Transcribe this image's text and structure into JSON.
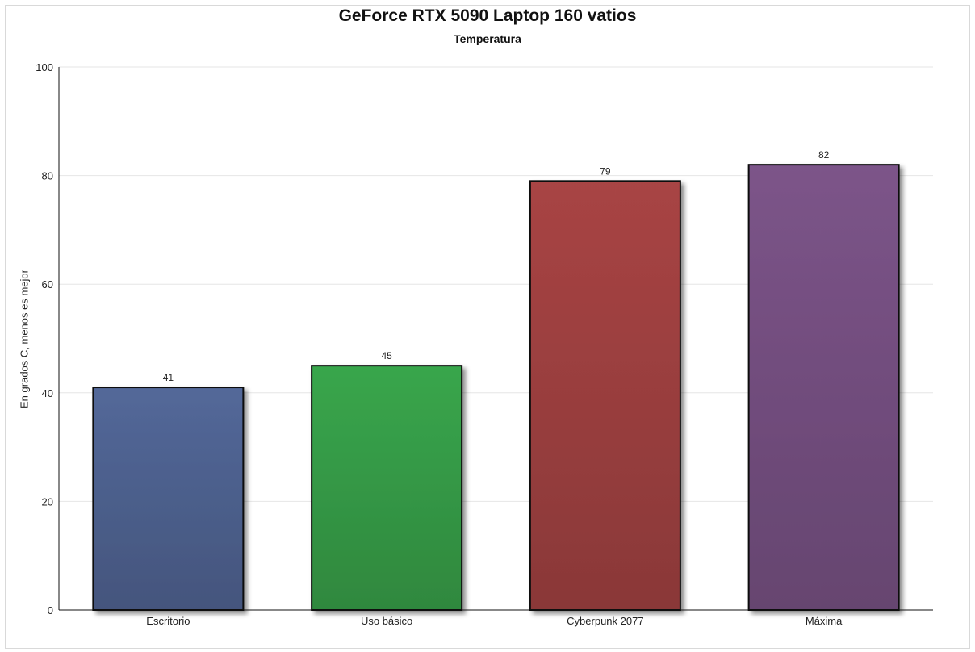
{
  "chart_data": {
    "type": "bar",
    "title": "GeForce RTX 5090 Laptop 160 vatios",
    "subtitle": "Temperatura",
    "ylabel": "En grados C, menos es mejor",
    "xlabel": "",
    "categories": [
      "Escritorio",
      "Uso básico",
      "Cyberpunk 2077",
      "Máxima"
    ],
    "values": [
      41,
      45,
      79,
      82
    ],
    "data_labels": [
      "41",
      "45",
      "79",
      "82"
    ],
    "ylim": [
      0,
      100
    ],
    "yticks": [
      0,
      20,
      40,
      60,
      80,
      100
    ],
    "grid": true,
    "legend": "none",
    "colors": [
      "#536899",
      "#39a64c",
      "#a84444",
      "#7c5489"
    ]
  }
}
